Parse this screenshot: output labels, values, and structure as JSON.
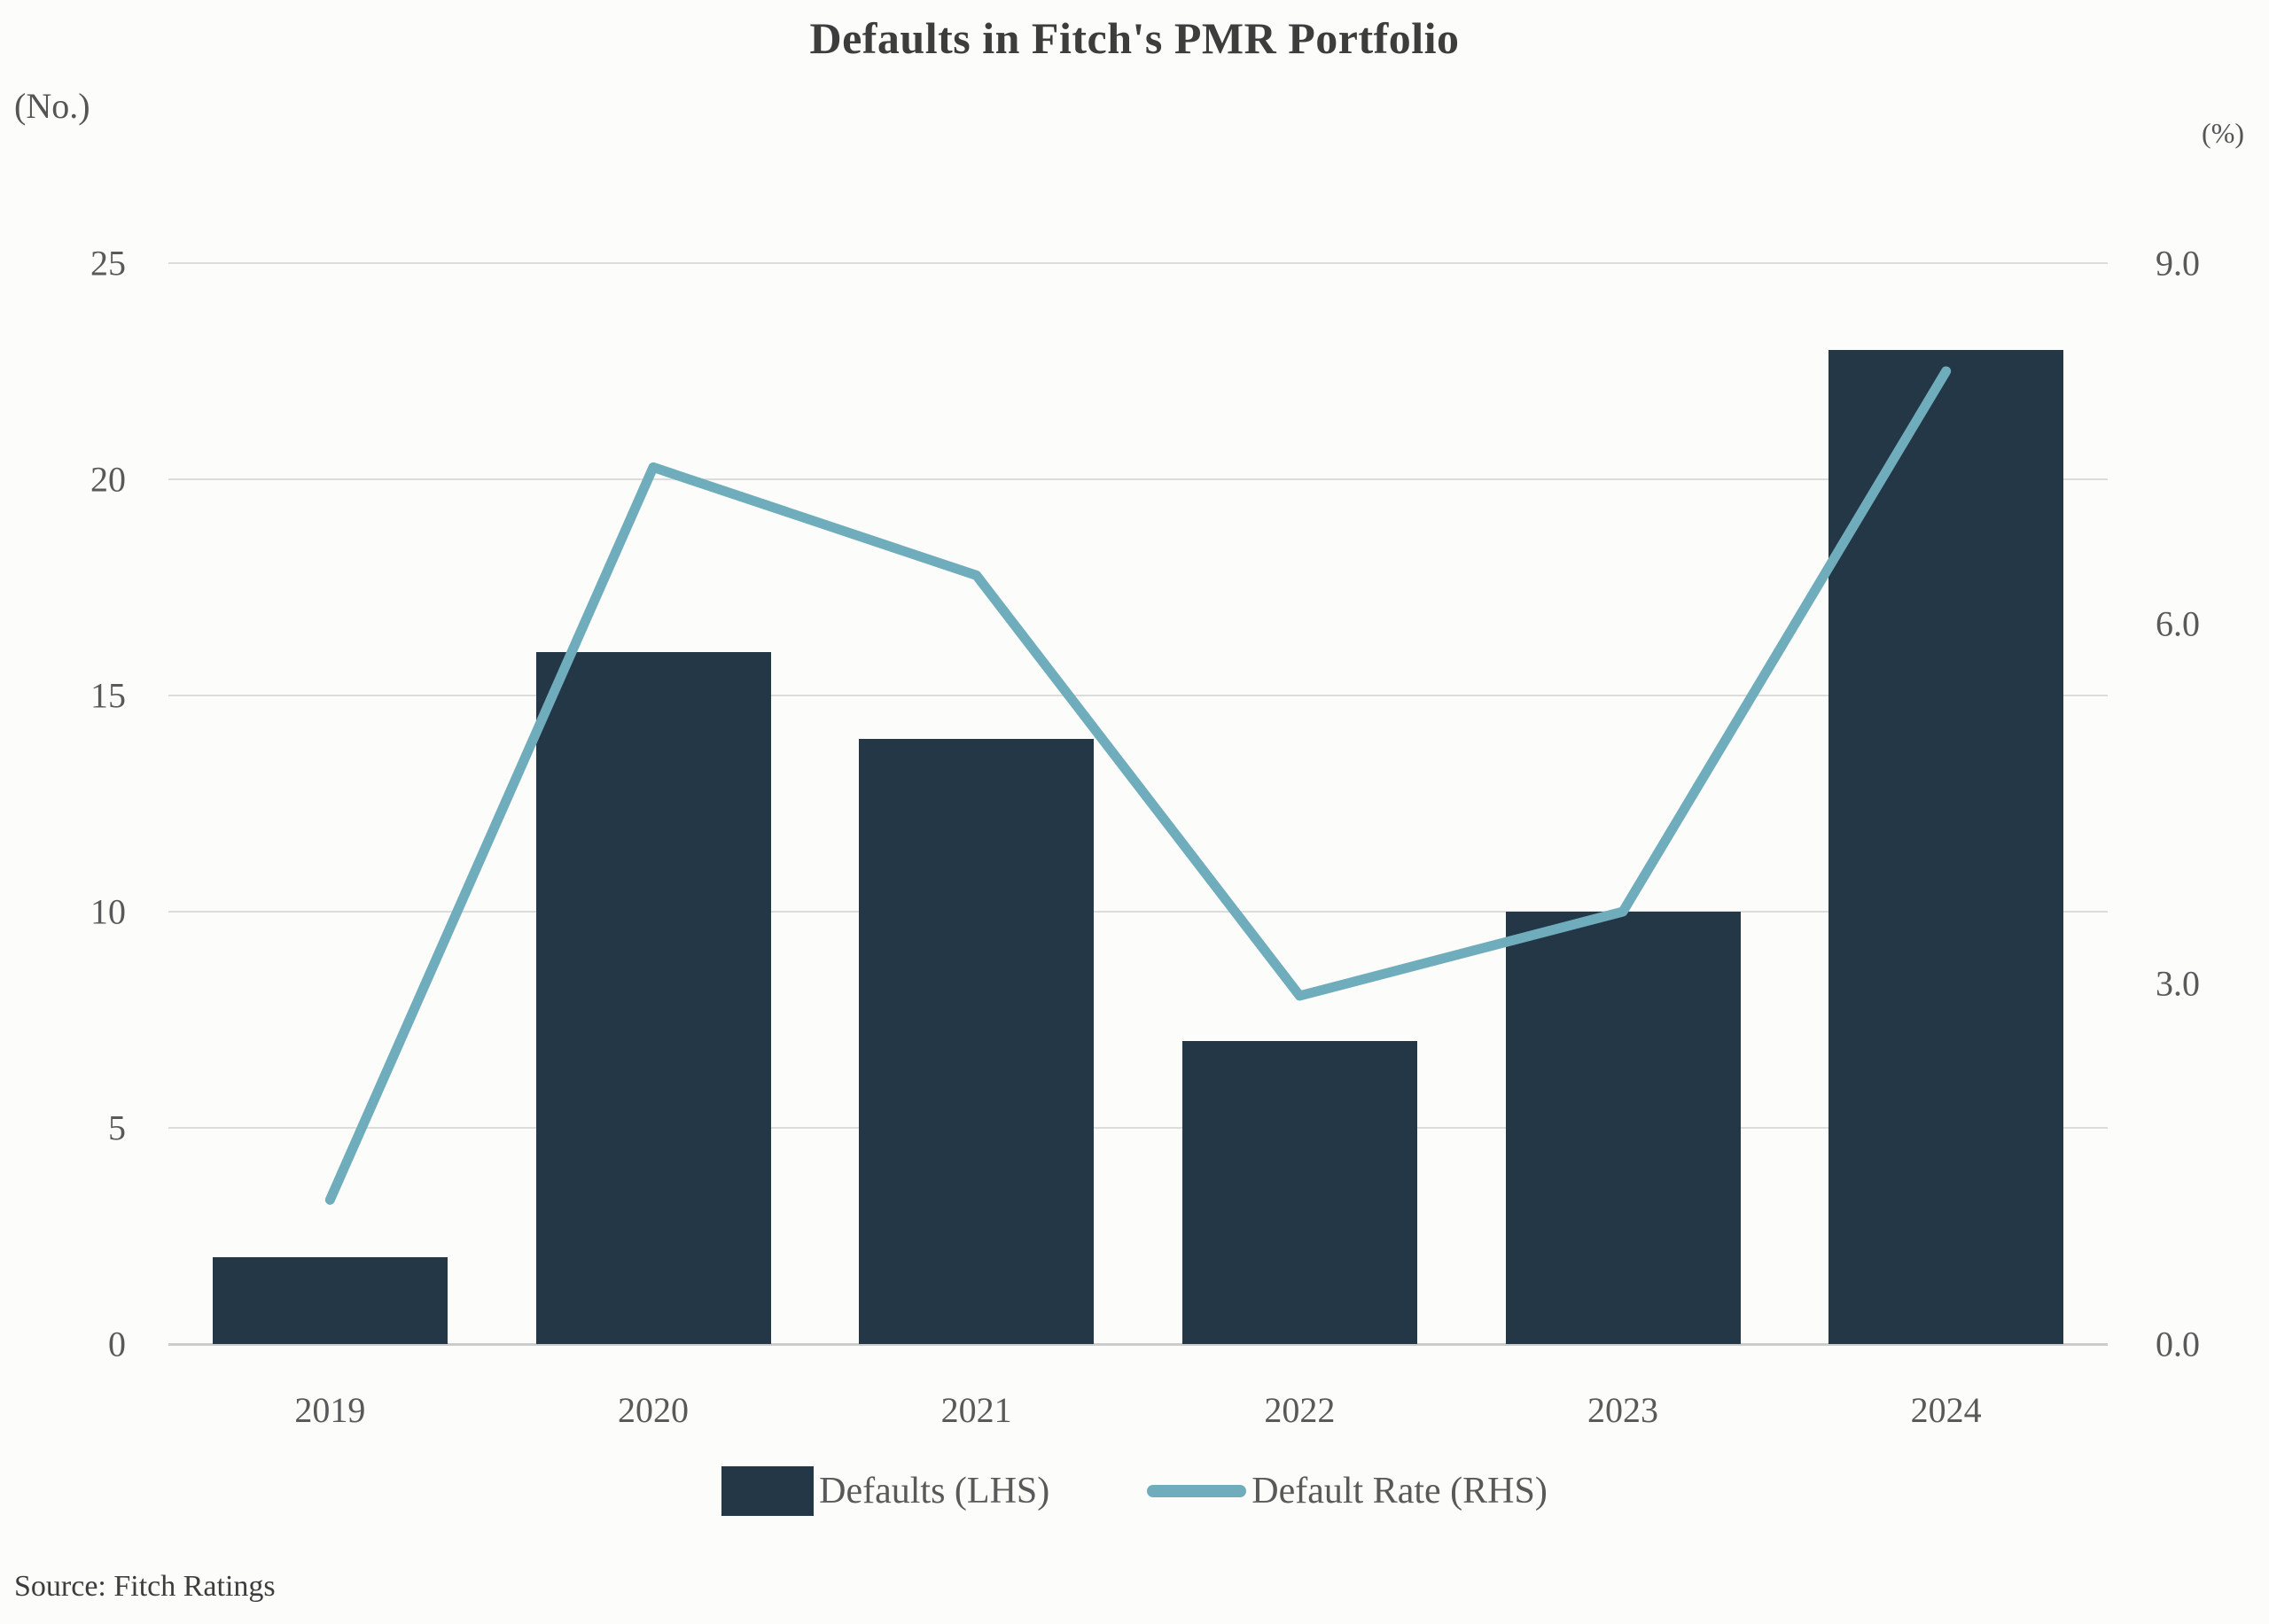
{
  "title": "Defaults in Fitch's PMR Portfolio",
  "source": "Source: Fitch Ratings",
  "colors": {
    "bar": "#233747",
    "line": "#6fadbc",
    "grid": "#dcdcdc",
    "axis": "#cccccc",
    "text": "#595959",
    "title_text": "#3d3d3d"
  },
  "legend": [
    {
      "label": "Defaults (LHS)",
      "type": "bar",
      "color": "#233747"
    },
    {
      "label": "Default Rate (RHS)",
      "type": "line",
      "color": "#6fadbc"
    }
  ],
  "chart_data": {
    "type": "bar",
    "subtype": "combo-bar-line-dual-axis",
    "title": "Defaults in Fitch's PMR Portfolio",
    "categories": [
      "2019",
      "2020",
      "2021",
      "2022",
      "2023",
      "2024"
    ],
    "series": [
      {
        "name": "Defaults (LHS)",
        "type": "bar",
        "axis": "left",
        "color": "#233747",
        "values": [
          2,
          16,
          14,
          7,
          10,
          23
        ]
      },
      {
        "name": "Default Rate (RHS)",
        "type": "line",
        "axis": "right",
        "color": "#6fadbc",
        "values": [
          1.2,
          7.3,
          6.4,
          2.9,
          3.6,
          8.1
        ]
      }
    ],
    "left_axis": {
      "label": "(No.)",
      "min": 0,
      "max": 25,
      "ticks": [
        0,
        5,
        10,
        15,
        20,
        25
      ]
    },
    "right_axis": {
      "label": "(%)",
      "min": 0,
      "max": 9,
      "ticks": [
        "0.0",
        "3.0",
        "6.0",
        "9.0"
      ]
    },
    "grid": true,
    "legend_position": "bottom",
    "source": "Source: Fitch Ratings"
  }
}
